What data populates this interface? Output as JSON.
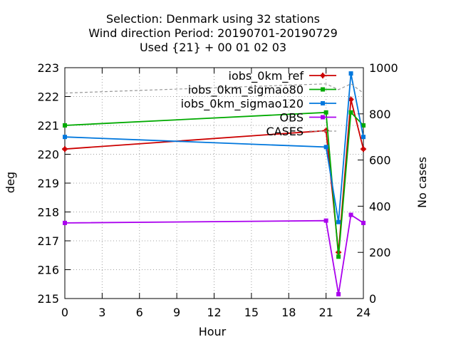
{
  "chart_data": {
    "type": "line",
    "title_lines": [
      "Selection: Denmark using    32 stations",
      "Wind direction   Period: 20190701-20190729",
      "Used {21} + 00 01 02 03"
    ],
    "xlabel": "Hour",
    "ylabel": "deg",
    "y2label": "No cases",
    "xlim": [
      0,
      24
    ],
    "ylim": [
      215,
      223
    ],
    "y2lim": [
      0,
      1000
    ],
    "x_ticks": [
      0,
      3,
      6,
      9,
      12,
      15,
      18,
      21,
      24
    ],
    "y_ticks": [
      215,
      216,
      217,
      218,
      219,
      220,
      221,
      222,
      223
    ],
    "y2_ticks": [
      0,
      200,
      400,
      600,
      800,
      1000
    ],
    "grid": true,
    "legend_position": "top-right",
    "series": [
      {
        "name": "iobs_0km_ref",
        "color": "#cc0000",
        "marker": "plus",
        "x": [
          0,
          21,
          22,
          23,
          24
        ],
        "y": [
          220.18,
          220.82,
          216.6,
          221.9,
          220.18
        ]
      },
      {
        "name": "iobs_0km_sigmao80",
        "color": "#00aa00",
        "marker": "square",
        "x": [
          0,
          21,
          22,
          23,
          24
        ],
        "y": [
          221.0,
          221.45,
          216.45,
          221.45,
          221.0
        ]
      },
      {
        "name": "iobs_0km_sigmao120",
        "color": "#0077dd",
        "marker": "square",
        "x": [
          0,
          21,
          22,
          23,
          24
        ],
        "y": [
          220.6,
          220.25,
          217.65,
          222.8,
          220.6
        ]
      },
      {
        "name": "OBS",
        "color": "#aa00ee",
        "marker": "square",
        "x": [
          0,
          21,
          22,
          23,
          24
        ],
        "y": [
          217.62,
          217.7,
          215.15,
          217.9,
          217.62
        ]
      },
      {
        "name": "CASES",
        "color": "#999999",
        "dashed": true,
        "axis": "y2",
        "x": [
          0,
          21,
          22,
          23,
          24
        ],
        "y": [
          890,
          930,
          905,
          930,
          890
        ]
      }
    ]
  }
}
